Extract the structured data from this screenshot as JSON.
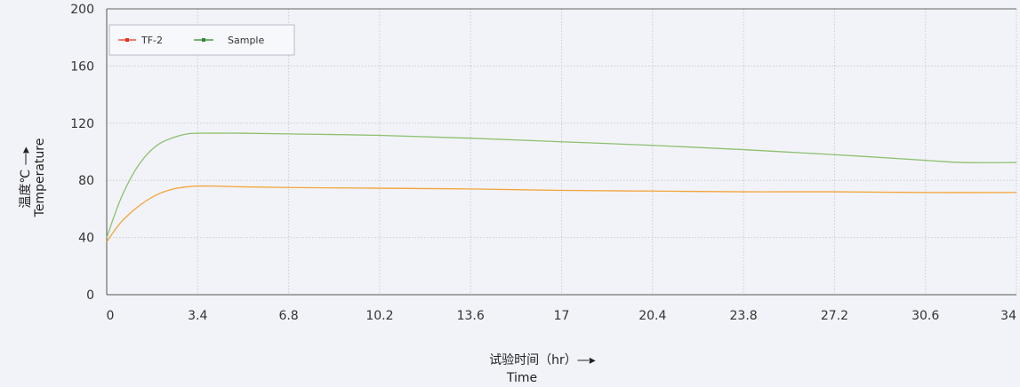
{
  "chart_data": {
    "type": "line",
    "title": "",
    "xlabel": "试验时间（hr）—▸",
    "xlabel_en": "Time",
    "ylabel": "温度℃ —▸",
    "ylabel_en": "Temperature",
    "xlim": [
      0,
      34
    ],
    "ylim": [
      0,
      200
    ],
    "x_ticks": [
      "0",
      "3.4",
      "6.8",
      "10.2",
      "13.6",
      "17",
      "20.4",
      "23.8",
      "27.2",
      "30.6",
      "34"
    ],
    "y_ticks": [
      "200",
      "160",
      "120",
      "80",
      "40",
      "0"
    ],
    "grid": true,
    "legend_position": "top-left",
    "series": [
      {
        "name": "TF-2",
        "color": "#f2a43a",
        "marker_color": "#e83020",
        "x": [
          0,
          0.5,
          1,
          1.5,
          2,
          2.5,
          3,
          3.4,
          4,
          5,
          6.8,
          10.2,
          13.6,
          17,
          20.4,
          23.8,
          27.2,
          30.6,
          34
        ],
        "y": [
          37,
          50,
          59,
          66,
          71,
          74,
          75.5,
          76,
          76,
          75.5,
          75,
          74.5,
          74,
          73,
          72.5,
          72,
          72,
          71.5,
          71.5
        ]
      },
      {
        "name": "Sample",
        "color": "#8cc06e",
        "marker_color": "#2a8a2a",
        "x": [
          0,
          0.5,
          1,
          1.5,
          2,
          2.5,
          3,
          3.4,
          4,
          5,
          6.8,
          10.2,
          13.6,
          17,
          20.4,
          23.8,
          27.2,
          30.6,
          32,
          34
        ],
        "y": [
          40,
          66,
          85,
          98,
          106,
          110,
          112.5,
          113,
          113,
          113,
          112.5,
          111.5,
          109.5,
          107,
          104.5,
          101.5,
          98,
          94,
          92.5,
          92.5
        ]
      }
    ]
  }
}
